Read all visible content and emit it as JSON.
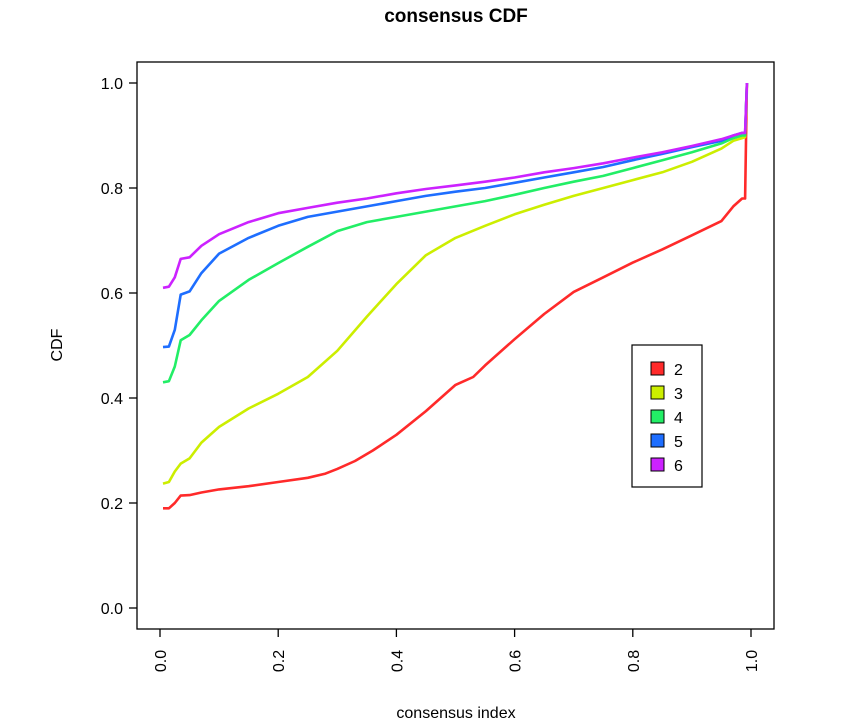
{
  "chart_data": {
    "type": "line",
    "title": "consensus CDF",
    "xlabel": "consensus index",
    "ylabel": "CDF",
    "xlim": [
      0,
      1
    ],
    "ylim": [
      0,
      1
    ],
    "x_ticks": [
      "0.0",
      "0.2",
      "0.4",
      "0.6",
      "0.8",
      "1.0"
    ],
    "y_ticks": [
      "0.0",
      "0.2",
      "0.4",
      "0.6",
      "0.8",
      "1.0"
    ],
    "grid": false,
    "legend_position": "right",
    "series": [
      {
        "name": "2",
        "color": "#ff2a2a",
        "points": [
          [
            0.005,
            0.19
          ],
          [
            0.015,
            0.19
          ],
          [
            0.025,
            0.2
          ],
          [
            0.035,
            0.214
          ],
          [
            0.05,
            0.215
          ],
          [
            0.07,
            0.22
          ],
          [
            0.1,
            0.226
          ],
          [
            0.15,
            0.232
          ],
          [
            0.2,
            0.24
          ],
          [
            0.25,
            0.248
          ],
          [
            0.28,
            0.256
          ],
          [
            0.3,
            0.265
          ],
          [
            0.33,
            0.28
          ],
          [
            0.36,
            0.3
          ],
          [
            0.4,
            0.33
          ],
          [
            0.45,
            0.375
          ],
          [
            0.5,
            0.425
          ],
          [
            0.53,
            0.44
          ],
          [
            0.55,
            0.462
          ],
          [
            0.6,
            0.512
          ],
          [
            0.65,
            0.56
          ],
          [
            0.7,
            0.602
          ],
          [
            0.75,
            0.63
          ],
          [
            0.8,
            0.658
          ],
          [
            0.85,
            0.683
          ],
          [
            0.9,
            0.71
          ],
          [
            0.95,
            0.737
          ],
          [
            0.97,
            0.765
          ],
          [
            0.985,
            0.78
          ],
          [
            0.99,
            0.78
          ],
          [
            0.993,
            1.0
          ]
        ]
      },
      {
        "name": "3",
        "color": "#ccee00",
        "points": [
          [
            0.005,
            0.237
          ],
          [
            0.015,
            0.24
          ],
          [
            0.025,
            0.26
          ],
          [
            0.035,
            0.275
          ],
          [
            0.05,
            0.285
          ],
          [
            0.07,
            0.315
          ],
          [
            0.1,
            0.345
          ],
          [
            0.15,
            0.38
          ],
          [
            0.2,
            0.408
          ],
          [
            0.25,
            0.44
          ],
          [
            0.3,
            0.49
          ],
          [
            0.35,
            0.555
          ],
          [
            0.4,
            0.617
          ],
          [
            0.45,
            0.672
          ],
          [
            0.5,
            0.705
          ],
          [
            0.55,
            0.728
          ],
          [
            0.6,
            0.75
          ],
          [
            0.65,
            0.768
          ],
          [
            0.7,
            0.785
          ],
          [
            0.75,
            0.8
          ],
          [
            0.8,
            0.815
          ],
          [
            0.85,
            0.83
          ],
          [
            0.9,
            0.85
          ],
          [
            0.95,
            0.875
          ],
          [
            0.97,
            0.89
          ],
          [
            0.985,
            0.895
          ],
          [
            0.99,
            0.897
          ],
          [
            0.993,
            1.0
          ]
        ]
      },
      {
        "name": "4",
        "color": "#22ee66",
        "points": [
          [
            0.005,
            0.43
          ],
          [
            0.015,
            0.432
          ],
          [
            0.025,
            0.46
          ],
          [
            0.035,
            0.51
          ],
          [
            0.05,
            0.52
          ],
          [
            0.07,
            0.548
          ],
          [
            0.1,
            0.585
          ],
          [
            0.15,
            0.625
          ],
          [
            0.2,
            0.657
          ],
          [
            0.25,
            0.688
          ],
          [
            0.3,
            0.718
          ],
          [
            0.35,
            0.735
          ],
          [
            0.4,
            0.745
          ],
          [
            0.45,
            0.755
          ],
          [
            0.5,
            0.765
          ],
          [
            0.55,
            0.775
          ],
          [
            0.6,
            0.787
          ],
          [
            0.65,
            0.8
          ],
          [
            0.7,
            0.812
          ],
          [
            0.75,
            0.823
          ],
          [
            0.8,
            0.838
          ],
          [
            0.85,
            0.853
          ],
          [
            0.9,
            0.868
          ],
          [
            0.95,
            0.885
          ],
          [
            0.97,
            0.895
          ],
          [
            0.985,
            0.9
          ],
          [
            0.99,
            0.9
          ],
          [
            0.993,
            1.0
          ]
        ]
      },
      {
        "name": "5",
        "color": "#1e6eff",
        "points": [
          [
            0.005,
            0.497
          ],
          [
            0.015,
            0.498
          ],
          [
            0.025,
            0.53
          ],
          [
            0.035,
            0.597
          ],
          [
            0.05,
            0.603
          ],
          [
            0.07,
            0.638
          ],
          [
            0.1,
            0.675
          ],
          [
            0.15,
            0.705
          ],
          [
            0.2,
            0.728
          ],
          [
            0.25,
            0.745
          ],
          [
            0.3,
            0.755
          ],
          [
            0.35,
            0.765
          ],
          [
            0.4,
            0.775
          ],
          [
            0.45,
            0.785
          ],
          [
            0.5,
            0.793
          ],
          [
            0.55,
            0.8
          ],
          [
            0.6,
            0.81
          ],
          [
            0.65,
            0.82
          ],
          [
            0.7,
            0.83
          ],
          [
            0.75,
            0.84
          ],
          [
            0.8,
            0.853
          ],
          [
            0.85,
            0.865
          ],
          [
            0.9,
            0.878
          ],
          [
            0.95,
            0.89
          ],
          [
            0.97,
            0.9
          ],
          [
            0.985,
            0.905
          ],
          [
            0.99,
            0.905
          ],
          [
            0.993,
            1.0
          ]
        ]
      },
      {
        "name": "6",
        "color": "#cc22ff",
        "points": [
          [
            0.005,
            0.61
          ],
          [
            0.015,
            0.612
          ],
          [
            0.025,
            0.63
          ],
          [
            0.035,
            0.665
          ],
          [
            0.05,
            0.668
          ],
          [
            0.07,
            0.69
          ],
          [
            0.1,
            0.712
          ],
          [
            0.15,
            0.735
          ],
          [
            0.2,
            0.752
          ],
          [
            0.25,
            0.762
          ],
          [
            0.3,
            0.772
          ],
          [
            0.35,
            0.78
          ],
          [
            0.4,
            0.79
          ],
          [
            0.45,
            0.798
          ],
          [
            0.5,
            0.805
          ],
          [
            0.55,
            0.812
          ],
          [
            0.6,
            0.82
          ],
          [
            0.65,
            0.83
          ],
          [
            0.7,
            0.838
          ],
          [
            0.75,
            0.847
          ],
          [
            0.8,
            0.858
          ],
          [
            0.85,
            0.868
          ],
          [
            0.9,
            0.88
          ],
          [
            0.95,
            0.893
          ],
          [
            0.97,
            0.9
          ],
          [
            0.985,
            0.905
          ],
          [
            0.99,
            0.905
          ],
          [
            0.993,
            1.0
          ]
        ]
      }
    ]
  }
}
